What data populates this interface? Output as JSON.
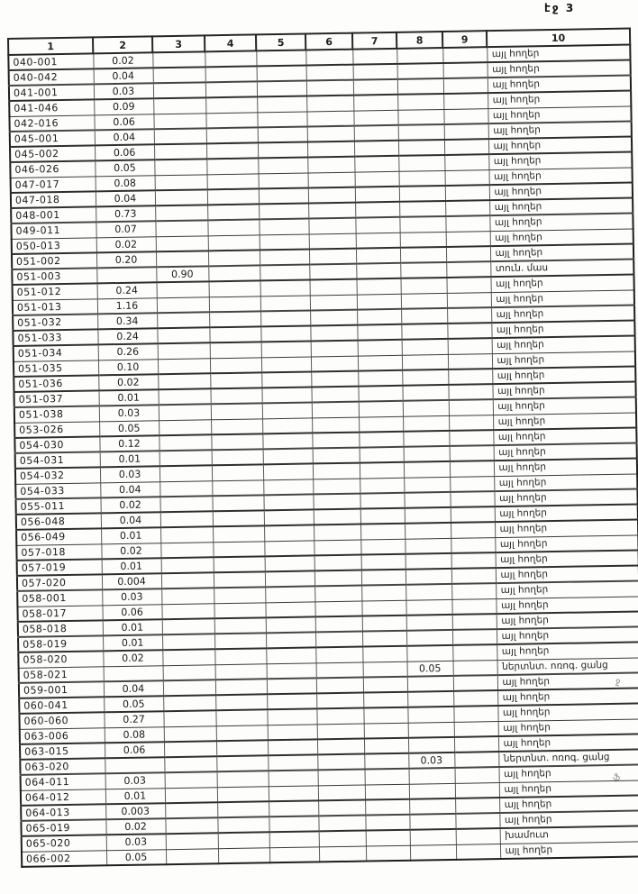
{
  "page": {
    "label": "էջ 3"
  },
  "table": {
    "headers": [
      "1",
      "2",
      "3",
      "4",
      "5",
      "6",
      "7",
      "8",
      "9",
      "10"
    ],
    "rows": [
      {
        "c1": "040-001",
        "c2": "0.02",
        "c10": "այլ հողեր"
      },
      {
        "c1": "040-042",
        "c2": "0.04",
        "c10": "այլ հողեր"
      },
      {
        "c1": "041-001",
        "c2": "0.03",
        "c10": "այլ հողեր"
      },
      {
        "c1": "041-046",
        "c2": "0.09",
        "c10": "այլ հողեր"
      },
      {
        "c1": "042-016",
        "c2": "0.06",
        "c10": "այլ հողեր"
      },
      {
        "c1": "045-001",
        "c2": "0.04",
        "c10": "այլ հողեր"
      },
      {
        "c1": "045-002",
        "c2": "0.06",
        "c10": "այլ հողեր"
      },
      {
        "c1": "046-026",
        "c2": "0.05",
        "c10": "այլ հողեր"
      },
      {
        "c1": "047-017",
        "c2": "0.08",
        "c10": "այլ հողեր"
      },
      {
        "c1": "047-018",
        "c2": "0.04",
        "c10": "այլ հողեր"
      },
      {
        "c1": "048-001",
        "c2": "0.73",
        "c10": "այլ հողեր"
      },
      {
        "c1": "049-011",
        "c2": "0.07",
        "c10": "այլ հողեր"
      },
      {
        "c1": "050-013",
        "c2": "0.02",
        "c10": "այլ հողեր"
      },
      {
        "c1": "051-002",
        "c2": "0.20",
        "c10": "այլ հողեր"
      },
      {
        "c1": "051-003",
        "c3": "0.90",
        "c10": "տուն. մաս"
      },
      {
        "c1": "051-012",
        "c2": "0.24",
        "c10": "այլ հողեր"
      },
      {
        "c1": "051-013",
        "c2": "1.16",
        "c10": "այլ հողեր"
      },
      {
        "c1": "051-032",
        "c2": "0.34",
        "c10": "այլ հողեր"
      },
      {
        "c1": "051-033",
        "c2": "0.24",
        "c10": "այլ հողեր"
      },
      {
        "c1": "051-034",
        "c2": "0.26",
        "c10": "այլ հողեր"
      },
      {
        "c1": "051-035",
        "c2": "0.10",
        "c10": "այլ հողեր"
      },
      {
        "c1": "051-036",
        "c2": "0.02",
        "c10": "այլ հողեր"
      },
      {
        "c1": "051-037",
        "c2": "0.01",
        "c10": "այլ հողեր"
      },
      {
        "c1": "051-038",
        "c2": "0.03",
        "c10": "այլ հողեր"
      },
      {
        "c1": "053-026",
        "c2": "0.05",
        "c10": "այլ հողեր"
      },
      {
        "c1": "054-030",
        "c2": "0.12",
        "c10": "այլ հողեր"
      },
      {
        "c1": "054-031",
        "c2": "0.01",
        "c10": "այլ հողեր"
      },
      {
        "c1": "054-032",
        "c2": "0.03",
        "c10": "այլ հողեր"
      },
      {
        "c1": "054-033",
        "c2": "0.04",
        "c10": "այլ հողեր"
      },
      {
        "c1": "055-011",
        "c2": "0.02",
        "c10": "այլ հողեր"
      },
      {
        "c1": "056-048",
        "c2": "0.04",
        "c10": "այլ հողեր"
      },
      {
        "c1": "056-049",
        "c2": "0.01",
        "c10": "այլ հողեր"
      },
      {
        "c1": "057-018",
        "c2": "0.02",
        "c10": "այլ հողեր"
      },
      {
        "c1": "057-019",
        "c2": "0.01",
        "c10": "այլ հողեր"
      },
      {
        "c1": "057-020",
        "c2": "0.004",
        "c10": "այլ հողեր"
      },
      {
        "c1": "058-001",
        "c2": "0.03",
        "c10": "այլ հողեր"
      },
      {
        "c1": "058-017",
        "c2": "0.06",
        "c10": "այլ հողեր"
      },
      {
        "c1": "058-018",
        "c2": "0.01",
        "c10": "այլ հողեր"
      },
      {
        "c1": "058-019",
        "c2": "0.01",
        "c10": "այլ հողեր"
      },
      {
        "c1": "058-020",
        "c2": "0.02",
        "c10": "այլ հողեր"
      },
      {
        "c1": "058-021",
        "c8": "0.05",
        "c10": "ներտնտ. ոռոգ. ցանց"
      },
      {
        "c1": "059-001",
        "c2": "0.04",
        "c10": "այլ հողեր"
      },
      {
        "c1": "060-041",
        "c2": "0.05",
        "c10": "այլ հողեր"
      },
      {
        "c1": "060-060",
        "c2": "0.27",
        "c10": "այլ հողեր"
      },
      {
        "c1": "063-006",
        "c2": "0.08",
        "c10": "այլ հողեր"
      },
      {
        "c1": "063-015",
        "c2": "0.06",
        "c10": "այլ հողեր"
      },
      {
        "c1": "063-020",
        "c8": "0.03",
        "c10": "ներտնտ. ոռոգ. ցանց"
      },
      {
        "c1": "064-011",
        "c2": "0.03",
        "c10": "այլ հողեր"
      },
      {
        "c1": "064-012",
        "c2": "0.01",
        "c10": "այլ հողեր"
      },
      {
        "c1": "064-013",
        "c2": "0.003",
        "c10": "այլ հողեր"
      },
      {
        "c1": "065-019",
        "c2": "0.02",
        "c10": "այլ հողեր"
      },
      {
        "c1": "065-020",
        "c2": "0.03",
        "c10": "խամուտ"
      },
      {
        "c1": "066-002",
        "c2": "0.05",
        "c10": "այլ հողեր"
      }
    ]
  },
  "margin_marks": [
    {
      "text": "ջ"
    },
    {
      "text": "ֆ"
    }
  ]
}
